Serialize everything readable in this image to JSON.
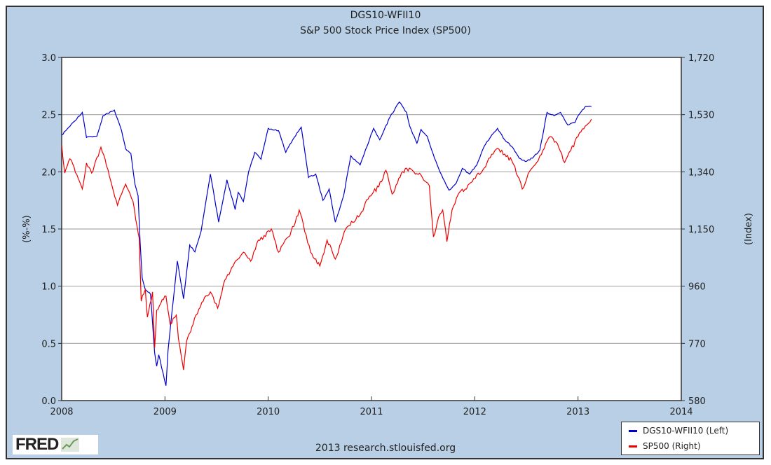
{
  "chart_data": {
    "type": "line",
    "title": "DGS10-WFII10",
    "subtitle": "S&P 500 Stock Price Index (SP500)",
    "xlabel": "",
    "ylabel_left": "(%-%)",
    "ylabel_right": "(Index)",
    "xlim": [
      2008,
      2014
    ],
    "ylim_left": [
      0,
      3.0
    ],
    "ylim_right": [
      580,
      1720
    ],
    "x_ticks": [
      "2008",
      "2009",
      "2010",
      "2011",
      "2012",
      "2013",
      "2014"
    ],
    "y_ticks_left": [
      "0.0",
      "0.5",
      "1.0",
      "1.5",
      "2.0",
      "2.5",
      "3.0"
    ],
    "y_ticks_right": [
      "580",
      "770",
      "960",
      "1,150",
      "1,340",
      "1,530",
      "1,720"
    ],
    "grid": true,
    "legend_position": "bottom-right",
    "series": [
      {
        "name": "DGS10-WFII10 (Left)",
        "axis": "left",
        "color": "#0000cc",
        "x": [
          2008.0,
          2008.2,
          2008.24,
          2008.34,
          2008.4,
          2008.51,
          2008.58,
          2008.62,
          2008.67,
          2008.71,
          2008.74,
          2008.76,
          2008.78,
          2008.81,
          2008.86,
          2008.9,
          2008.92,
          2008.94,
          2009.01,
          2009.03,
          2009.12,
          2009.18,
          2009.24,
          2009.29,
          2009.35,
          2009.44,
          2009.52,
          2009.6,
          2009.68,
          2009.71,
          2009.76,
          2009.81,
          2009.87,
          2009.93,
          2010.0,
          2010.1,
          2010.17,
          2010.21,
          2010.32,
          2010.39,
          2010.46,
          2010.53,
          2010.59,
          2010.65,
          2010.73,
          2010.8,
          2010.89,
          2011.02,
          2011.08,
          2011.18,
          2011.27,
          2011.34,
          2011.37,
          2011.44,
          2011.48,
          2011.54,
          2011.61,
          2011.68,
          2011.75,
          2011.82,
          2011.88,
          2011.95,
          2012.02,
          2012.09,
          2012.15,
          2012.22,
          2012.29,
          2012.36,
          2012.43,
          2012.49,
          2012.56,
          2012.63,
          2012.7,
          2012.77,
          2012.83,
          2012.9,
          2012.97,
          2013.0,
          2013.07,
          2013.13
        ],
        "values": [
          2.32,
          2.52,
          2.3,
          2.31,
          2.49,
          2.54,
          2.36,
          2.2,
          2.16,
          1.89,
          1.79,
          1.38,
          1.07,
          0.97,
          0.93,
          0.42,
          0.3,
          0.4,
          0.13,
          0.44,
          1.22,
          0.89,
          1.36,
          1.3,
          1.48,
          1.98,
          1.56,
          1.93,
          1.67,
          1.82,
          1.74,
          2.0,
          2.17,
          2.11,
          2.38,
          2.36,
          2.17,
          2.24,
          2.39,
          1.95,
          1.98,
          1.75,
          1.85,
          1.56,
          1.79,
          2.14,
          2.06,
          2.38,
          2.28,
          2.48,
          2.61,
          2.52,
          2.4,
          2.25,
          2.37,
          2.31,
          2.12,
          1.97,
          1.84,
          1.9,
          2.03,
          1.98,
          2.06,
          2.22,
          2.3,
          2.38,
          2.28,
          2.22,
          2.12,
          2.09,
          2.12,
          2.19,
          2.52,
          2.49,
          2.52,
          2.41,
          2.43,
          2.49,
          2.57,
          2.57
        ]
      },
      {
        "name": "SP500 (Right)",
        "axis": "right",
        "color": "#ee0000",
        "x": [
          2008.0,
          2008.03,
          2008.08,
          2008.2,
          2008.24,
          2008.29,
          2008.38,
          2008.42,
          2008.49,
          2008.54,
          2008.62,
          2008.69,
          2008.73,
          2008.75,
          2008.77,
          2008.81,
          2008.83,
          2008.88,
          2008.9,
          2008.92,
          2008.96,
          2009.01,
          2009.05,
          2009.11,
          2009.13,
          2009.18,
          2009.21,
          2009.3,
          2009.37,
          2009.44,
          2009.51,
          2009.58,
          2009.66,
          2009.76,
          2009.83,
          2009.89,
          2010.03,
          2010.1,
          2010.14,
          2010.21,
          2010.3,
          2010.34,
          2010.41,
          2010.5,
          2010.57,
          2010.65,
          2010.75,
          2010.89,
          2010.98,
          2011.07,
          2011.14,
          2011.2,
          2011.29,
          2011.34,
          2011.41,
          2011.48,
          2011.53,
          2011.56,
          2011.6,
          2011.65,
          2011.69,
          2011.73,
          2011.78,
          2011.85,
          2011.92,
          2011.99,
          2012.09,
          2012.15,
          2012.22,
          2012.29,
          2012.36,
          2012.43,
          2012.46,
          2012.53,
          2012.6,
          2012.66,
          2012.73,
          2012.8,
          2012.87,
          2012.93,
          2013.0,
          2013.07,
          2013.13
        ],
        "values": [
          1429,
          1336,
          1383,
          1283,
          1369,
          1336,
          1422,
          1383,
          1290,
          1229,
          1299,
          1243,
          1159,
          1120,
          910,
          950,
          857,
          941,
          754,
          880,
          903,
          927,
          834,
          864,
          787,
          682,
          778,
          864,
          910,
          941,
          887,
          980,
          1027,
          1073,
          1043,
          1103,
          1150,
          1073,
          1097,
          1127,
          1213,
          1166,
          1073,
          1027,
          1113,
          1050,
          1150,
          1197,
          1259,
          1290,
          1345,
          1266,
          1336,
          1352,
          1340,
          1329,
          1306,
          1294,
          1124,
          1190,
          1213,
          1108,
          1213,
          1271,
          1283,
          1318,
          1352,
          1387,
          1418,
          1399,
          1376,
          1318,
          1283,
          1341,
          1371,
          1411,
          1457,
          1434,
          1371,
          1411,
          1457,
          1492,
          1515
        ]
      }
    ]
  },
  "legend": {
    "items": [
      "DGS10-WFII10 (Left)",
      "SP500 (Right)"
    ]
  },
  "footer": {
    "logo": "FRED",
    "credit": "2013 research.stlouisfed.org"
  }
}
